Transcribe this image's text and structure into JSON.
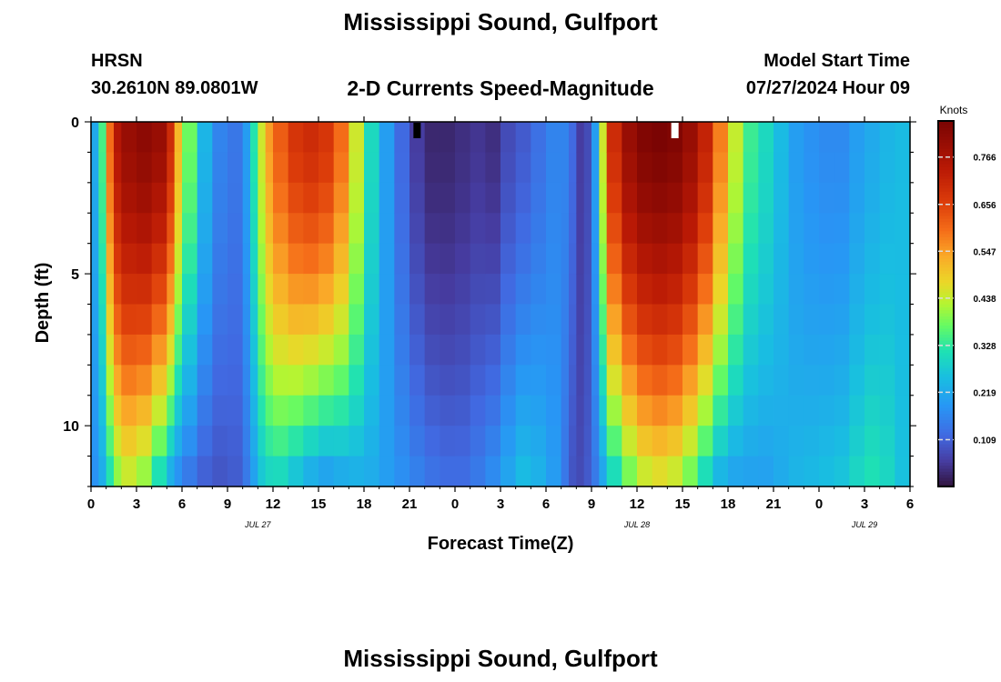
{
  "header": {
    "title": "Mississippi Sound, Gulfport",
    "station": "HRSN",
    "coords": "30.2610N  89.0801W",
    "subtitle": "2-D Currents Speed-Magnitude",
    "model_start_label": "Model Start Time",
    "model_start_value": "07/27/2024 Hour 09"
  },
  "footer": {
    "title": "Mississippi Sound, Gulfport"
  },
  "chart_data": {
    "type": "heatmap",
    "title": "2-D Currents Speed-Magnitude",
    "xlabel": "Forecast Time(Z)",
    "ylabel": "Depth (ft)",
    "x_range_hours": [
      0,
      54
    ],
    "xticks": [
      "0",
      "3",
      "6",
      "9",
      "12",
      "15",
      "18",
      "21",
      "0",
      "3",
      "6",
      "9",
      "12",
      "15",
      "18",
      "21",
      "0",
      "3",
      "6"
    ],
    "date_labels": [
      {
        "text": "JUL 27",
        "hour": 11
      },
      {
        "text": "JUL 28",
        "hour": 36
      },
      {
        "text": "JUL 29",
        "hour": 51
      }
    ],
    "ylim": [
      0,
      12
    ],
    "yticks": [
      "0",
      "5",
      "10"
    ],
    "depths_ft": [
      0,
      1,
      2,
      3,
      4,
      5,
      6,
      7,
      8,
      9,
      10,
      11,
      12
    ],
    "profile": {
      "hours": [
        0,
        0.5,
        1,
        1.5,
        2,
        3,
        4,
        5,
        5.5,
        6,
        7,
        8,
        9,
        10,
        10.5,
        11,
        11.5,
        12,
        13,
        14,
        15,
        16,
        17,
        18,
        19,
        20,
        21,
        22,
        23,
        24,
        25,
        26,
        27,
        28,
        29,
        30,
        31,
        31.5,
        32,
        32.5,
        33,
        33.5,
        34,
        35,
        36,
        37,
        38,
        39,
        40,
        41,
        42,
        43,
        44,
        45,
        46,
        47,
        48,
        49,
        50,
        51,
        52,
        53,
        54
      ],
      "surface_speed": [
        0.22,
        0.35,
        0.6,
        0.75,
        0.8,
        0.82,
        0.8,
        0.7,
        0.52,
        0.38,
        0.24,
        0.16,
        0.14,
        0.2,
        0.32,
        0.45,
        0.55,
        0.62,
        0.68,
        0.7,
        0.68,
        0.6,
        0.45,
        0.3,
        0.2,
        0.12,
        0.06,
        0.03,
        0.03,
        0.04,
        0.05,
        0.04,
        0.08,
        0.1,
        0.13,
        0.16,
        0.16,
        0.12,
        0.06,
        0.08,
        0.2,
        0.45,
        0.7,
        0.8,
        0.84,
        0.85,
        0.84,
        0.8,
        0.72,
        0.58,
        0.44,
        0.34,
        0.3,
        0.25,
        0.2,
        0.18,
        0.17,
        0.17,
        0.2,
        0.22,
        0.24,
        0.25,
        0.25
      ],
      "bottom_speed": [
        0.18,
        0.22,
        0.3,
        0.38,
        0.42,
        0.38,
        0.28,
        0.2,
        0.16,
        0.13,
        0.1,
        0.09,
        0.1,
        0.14,
        0.2,
        0.26,
        0.28,
        0.28,
        0.24,
        0.2,
        0.18,
        0.2,
        0.22,
        0.22,
        0.2,
        0.18,
        0.16,
        0.14,
        0.13,
        0.13,
        0.15,
        0.18,
        0.22,
        0.26,
        0.24,
        0.2,
        0.14,
        0.09,
        0.08,
        0.1,
        0.14,
        0.2,
        0.28,
        0.36,
        0.42,
        0.44,
        0.42,
        0.36,
        0.28,
        0.22,
        0.2,
        0.2,
        0.2,
        0.22,
        0.24,
        0.25,
        0.26,
        0.27,
        0.3,
        0.32,
        0.3,
        0.26,
        0.24
      ],
      "max_depth_ft": [
        12,
        12,
        12,
        12,
        12,
        12,
        12,
        12,
        12,
        12,
        12,
        12,
        12,
        12,
        12,
        12,
        12,
        12,
        12,
        12,
        12,
        12,
        12,
        12,
        12,
        12,
        12,
        12,
        12,
        12,
        12,
        12,
        12,
        12,
        12,
        12,
        12,
        12,
        12,
        12,
        12,
        12,
        12,
        12,
        12,
        12,
        12,
        12,
        12,
        12,
        12,
        12,
        12,
        12,
        12,
        12,
        12,
        12,
        12,
        12,
        12,
        12,
        12
      ]
    },
    "missing_cells": [
      {
        "hour": 21.5,
        "depth_ft": 0.25,
        "color": "#000000"
      },
      {
        "hour": 38.5,
        "depth_ft": 0.25,
        "color": "#ffffff"
      }
    ],
    "colorbar": {
      "label": "Knots",
      "min": 0,
      "max": 0.85,
      "ticks": [
        "0.766",
        "0.656",
        "0.547",
        "0.438",
        "0.328",
        "0.219",
        "0.109"
      ],
      "tick_values": [
        0.766,
        0.656,
        0.547,
        0.438,
        0.328,
        0.219,
        0.109
      ]
    },
    "grid": false,
    "legend": "right"
  }
}
